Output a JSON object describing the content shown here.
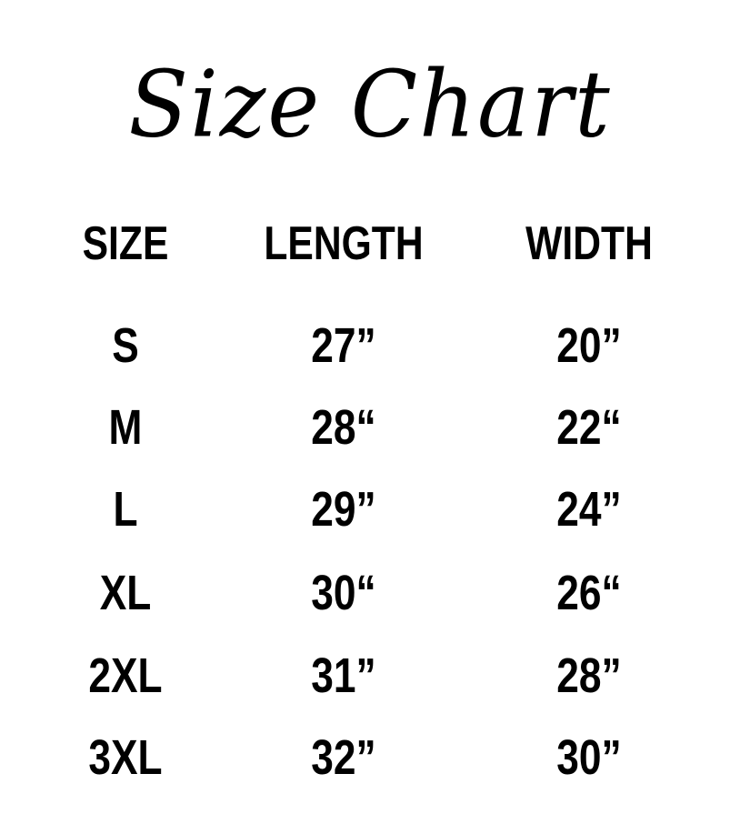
{
  "title": "Size Chart",
  "headers": [
    "SIZE",
    "LENGTH",
    "WIDTH"
  ],
  "rows": [
    [
      "S",
      "27”",
      "20”"
    ],
    [
      "M",
      "28“",
      "22“"
    ],
    [
      "L",
      "29”",
      "24”"
    ],
    [
      "XL",
      "30“",
      "26“"
    ],
    [
      "2XL",
      "31”",
      "28”"
    ],
    [
      "3XL",
      "32”",
      "30”"
    ]
  ]
}
